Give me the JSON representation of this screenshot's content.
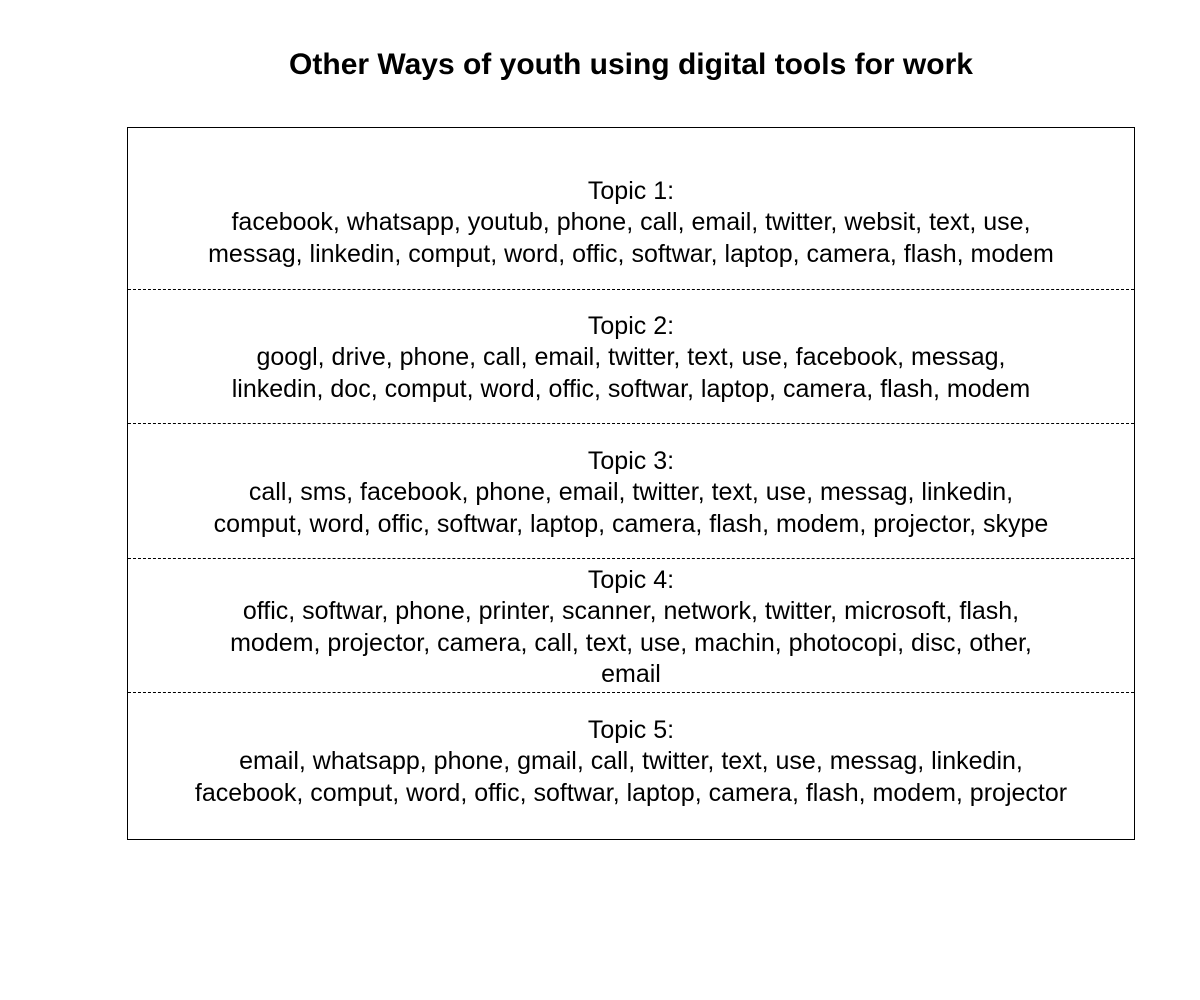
{
  "chart_data": {
    "type": "table",
    "title": "Other Ways of youth using digital tools for work",
    "topics": [
      {
        "label": "Topic 1:",
        "lines": [
          "facebook, whatsapp, youtub, phone, call, email, twitter, websit, text, use,",
          "messag, linkedin, comput, word, offic, softwar, laptop, camera, flash, modem"
        ]
      },
      {
        "label": "Topic 2:",
        "lines": [
          "googl, drive, phone, call, email, twitter, text, use, facebook, messag,",
          "linkedin, doc, comput, word, offic, softwar, laptop, camera, flash, modem"
        ]
      },
      {
        "label": "Topic 3:",
        "lines": [
          "call, sms, facebook, phone, email, twitter, text, use, messag, linkedin,",
          "comput, word, offic, softwar, laptop, camera, flash, modem, projector, skype"
        ]
      },
      {
        "label": "Topic 4:",
        "lines": [
          "offic, softwar, phone, printer, scanner, network, twitter, microsoft, flash,",
          "modem, projector, camera, call, text, use, machin, photocopi, disc, other,",
          "email"
        ]
      },
      {
        "label": "Topic 5:",
        "lines": [
          "email, whatsapp, phone, gmail, call, twitter, text, use, messag, linkedin,",
          "facebook, comput, word, offic, softwar, laptop, camera, flash, modem, projector"
        ]
      }
    ]
  }
}
